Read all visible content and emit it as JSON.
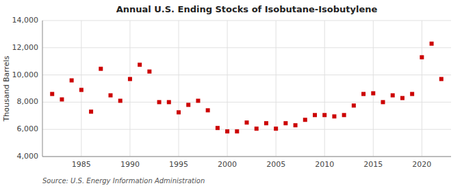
{
  "chart_data": {
    "type": "scatter",
    "title": "Annual U.S. Ending Stocks of Isobutane-Isobutylene",
    "ylabel": "Thousand Barrels",
    "annotation": "Source: U.S. Energy Information Administration",
    "color": "#cc0000",
    "marker": "square",
    "grid": true,
    "x": [
      1982,
      1983,
      1984,
      1985,
      1986,
      1987,
      1988,
      1989,
      1990,
      1991,
      1992,
      1993,
      1994,
      1995,
      1996,
      1997,
      1998,
      1999,
      2000,
      2001,
      2002,
      2003,
      2004,
      2005,
      2006,
      2007,
      2008,
      2009,
      2010,
      2011,
      2012,
      2013,
      2014,
      2015,
      2016,
      2017,
      2018,
      2019,
      2020,
      2021,
      2022
    ],
    "values": [
      8600,
      8200,
      9600,
      8900,
      7300,
      10450,
      8500,
      8100,
      9700,
      10750,
      10250,
      8000,
      8000,
      7250,
      7800,
      8100,
      7400,
      6100,
      5850,
      5850,
      6500,
      6050,
      6450,
      6050,
      6450,
      6300,
      6700,
      7050,
      7050,
      6950,
      7050,
      7750,
      8600,
      8650,
      8000,
      8500,
      8300,
      8600,
      11300,
      12300,
      9700
    ],
    "xlim": [
      1981,
      2023
    ],
    "xticks": [
      1985,
      1990,
      1995,
      2000,
      2005,
      2010,
      2015,
      2020
    ],
    "ylim": [
      4000,
      14000
    ],
    "yticks": [
      {
        "value": 4000,
        "label": "4,000"
      },
      {
        "value": 6000,
        "label": "6,000"
      },
      {
        "value": 8000,
        "label": "8,000"
      },
      {
        "value": 10000,
        "label": "10,000"
      },
      {
        "value": 12000,
        "label": "12,000"
      },
      {
        "value": 14000,
        "label": "14,000"
      }
    ]
  }
}
